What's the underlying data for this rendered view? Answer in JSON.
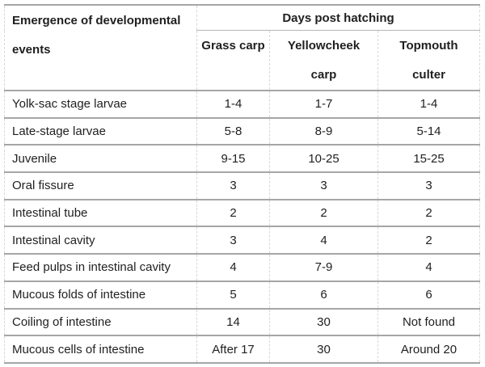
{
  "table": {
    "corner_header": "Emergence of developmental events",
    "group_header": "Days post hatching",
    "columns": [
      "Grass carp",
      "Yellowcheek carp",
      "Topmouth culter"
    ],
    "rows": [
      {
        "label": "Yolk-sac stage larvae",
        "values": [
          "1-4",
          "1-7",
          "1-4"
        ]
      },
      {
        "label": "Late-stage larvae",
        "values": [
          "5-8",
          "8-9",
          "5-14"
        ]
      },
      {
        "label": "Juvenile",
        "values": [
          "9-15",
          "10-25",
          "15-25"
        ]
      },
      {
        "label": "Oral fissure",
        "values": [
          "3",
          "3",
          "3"
        ]
      },
      {
        "label": "Intestinal tube",
        "values": [
          "2",
          "2",
          "2"
        ]
      },
      {
        "label": "Intestinal cavity",
        "values": [
          "3",
          "4",
          "2"
        ]
      },
      {
        "label": "Feed pulps in intestinal cavity",
        "values": [
          "4",
          "7-9",
          "4"
        ]
      },
      {
        "label": "Mucous folds of intestine",
        "values": [
          "5",
          "6",
          "6"
        ]
      },
      {
        "label": "Coiling of intestine",
        "values": [
          "14",
          "30",
          "Not found"
        ]
      },
      {
        "label": "Mucous cells of intestine",
        "values": [
          "After 17",
          "30",
          "Around 20"
        ]
      }
    ],
    "colors": {
      "horizontal_rule": "#a6a6a6",
      "vertical_rule": "#d7d7d7",
      "text": "#1f1f1f",
      "background": "#ffffff"
    }
  }
}
